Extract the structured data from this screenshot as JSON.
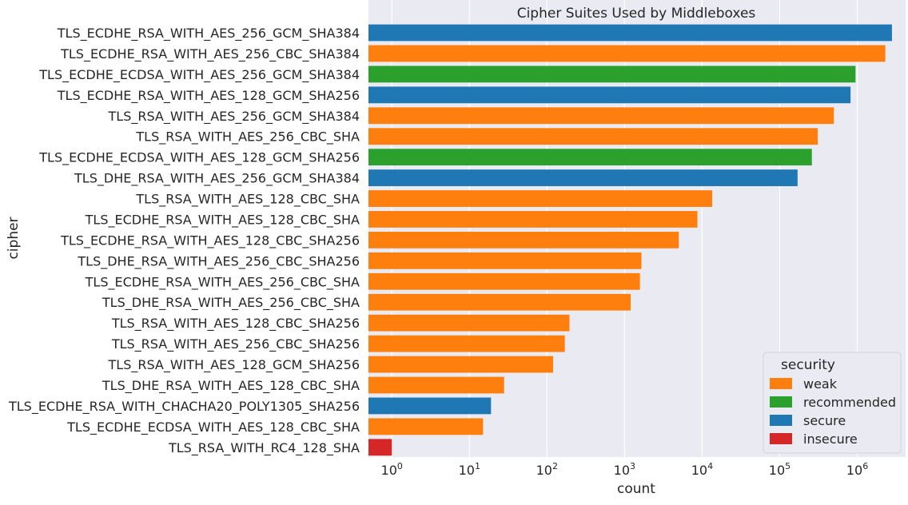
{
  "chart_data": {
    "type": "bar",
    "orientation": "horizontal",
    "title": "Cipher Suites Used by Middleboxes",
    "xlabel": "count",
    "ylabel": "cipher",
    "xscale": "log",
    "xlim": [
      0.5,
      4200000
    ],
    "x_ticks": [
      1,
      10,
      100,
      1000,
      10000,
      100000,
      1000000
    ],
    "x_tick_labels": [
      "10^0",
      "10^1",
      "10^2",
      "10^3",
      "10^4",
      "10^5",
      "10^6"
    ],
    "grid": true,
    "legend_position": "bottom-right",
    "legend_title": "security",
    "legend": [
      {
        "label": "weak",
        "color": "#ff7f0e"
      },
      {
        "label": "recommended",
        "color": "#2ca02c"
      },
      {
        "label": "secure",
        "color": "#1f77b4"
      },
      {
        "label": "insecure",
        "color": "#d62728"
      }
    ],
    "bars": [
      {
        "category": "TLS_ECDHE_RSA_WITH_AES_256_GCM_SHA384",
        "value": 2800000,
        "security": "secure"
      },
      {
        "category": "TLS_ECDHE_RSA_WITH_AES_256_CBC_SHA384",
        "value": 2300000,
        "security": "weak"
      },
      {
        "category": "TLS_ECDHE_ECDSA_WITH_AES_256_GCM_SHA384",
        "value": 950000,
        "security": "recommended"
      },
      {
        "category": "TLS_ECDHE_RSA_WITH_AES_128_GCM_SHA256",
        "value": 820000,
        "security": "secure"
      },
      {
        "category": "TLS_RSA_WITH_AES_256_GCM_SHA384",
        "value": 500000,
        "security": "weak"
      },
      {
        "category": "TLS_RSA_WITH_AES_256_CBC_SHA",
        "value": 310000,
        "security": "weak"
      },
      {
        "category": "TLS_ECDHE_ECDSA_WITH_AES_128_GCM_SHA256",
        "value": 260000,
        "security": "recommended"
      },
      {
        "category": "TLS_DHE_RSA_WITH_AES_256_GCM_SHA384",
        "value": 170000,
        "security": "secure"
      },
      {
        "category": "TLS_RSA_WITH_AES_128_CBC_SHA",
        "value": 13500,
        "security": "weak"
      },
      {
        "category": "TLS_ECDHE_RSA_WITH_AES_128_CBC_SHA",
        "value": 8700,
        "security": "weak"
      },
      {
        "category": "TLS_ECDHE_RSA_WITH_AES_128_CBC_SHA256",
        "value": 5000,
        "security": "weak"
      },
      {
        "category": "TLS_DHE_RSA_WITH_AES_256_CBC_SHA256",
        "value": 1650,
        "security": "weak"
      },
      {
        "category": "TLS_ECDHE_RSA_WITH_AES_256_CBC_SHA",
        "value": 1580,
        "security": "weak"
      },
      {
        "category": "TLS_DHE_RSA_WITH_AES_256_CBC_SHA",
        "value": 1200,
        "security": "weak"
      },
      {
        "category": "TLS_RSA_WITH_AES_128_CBC_SHA256",
        "value": 195,
        "security": "weak"
      },
      {
        "category": "TLS_RSA_WITH_AES_256_CBC_SHA256",
        "value": 170,
        "security": "weak"
      },
      {
        "category": "TLS_RSA_WITH_AES_128_GCM_SHA256",
        "value": 120,
        "security": "weak"
      },
      {
        "category": "TLS_DHE_RSA_WITH_AES_128_CBC_SHA",
        "value": 28,
        "security": "weak"
      },
      {
        "category": "TLS_ECDHE_RSA_WITH_CHACHA20_POLY1305_SHA256",
        "value": 19,
        "security": "secure"
      },
      {
        "category": "TLS_ECDHE_ECDSA_WITH_AES_128_CBC_SHA",
        "value": 15,
        "security": "weak"
      },
      {
        "category": "TLS_RSA_WITH_RC4_128_SHA",
        "value": 1,
        "security": "insecure"
      }
    ]
  }
}
